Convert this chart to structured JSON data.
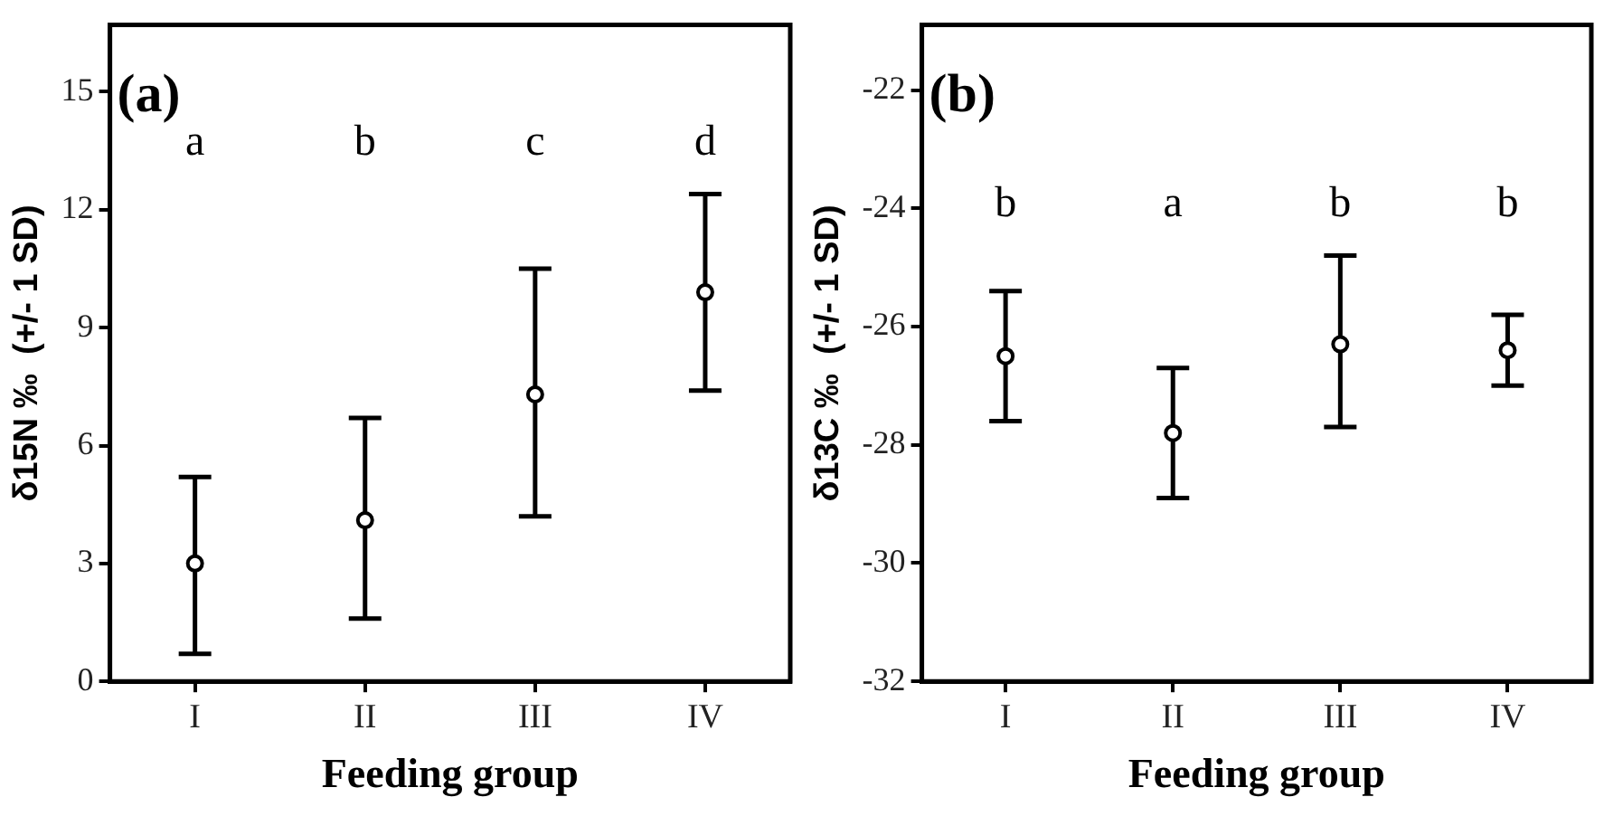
{
  "chart_data": [
    {
      "type": "scatter",
      "xlabel": "Feeding group",
      "ylabel": "δ15N ‰  (+/- 1 SD)",
      "categories": [
        "I",
        "II",
        "III",
        "IV"
      ],
      "values": [
        3.0,
        4.1,
        7.3,
        9.9
      ],
      "errors": [
        [
          0.7,
          5.2
        ],
        [
          1.6,
          6.7
        ],
        [
          4.2,
          10.5
        ],
        [
          7.4,
          12.4
        ]
      ],
      "color": "#000000",
      "marker": "circle",
      "ylim": [
        0,
        16.7
      ],
      "yticks": [
        0,
        3,
        6,
        9,
        12,
        15
      ],
      "grid": false,
      "legend": false,
      "annotations": [
        "(a)",
        "a",
        "b",
        "c",
        "d"
      ]
    },
    {
      "type": "scatter",
      "xlabel": "Feeding group",
      "ylabel": "δ13C ‰  (+/- 1 SD)",
      "categories": [
        "I",
        "II",
        "III",
        "IV"
      ],
      "values": [
        -26.5,
        -27.8,
        -26.3,
        -26.4
      ],
      "errors": [
        [
          -27.6,
          -25.4
        ],
        [
          -28.9,
          -26.7
        ],
        [
          -27.7,
          -24.8
        ],
        [
          -27.0,
          -25.8
        ]
      ],
      "color": "#000000",
      "marker": "circle",
      "ylim": [
        -32,
        -20.9
      ],
      "yticks": [
        -32,
        -30,
        -28,
        -26,
        -24,
        -22
      ],
      "grid": false,
      "legend": false,
      "annotations": [
        "(b)",
        "b",
        "a",
        "b",
        "b"
      ]
    }
  ]
}
